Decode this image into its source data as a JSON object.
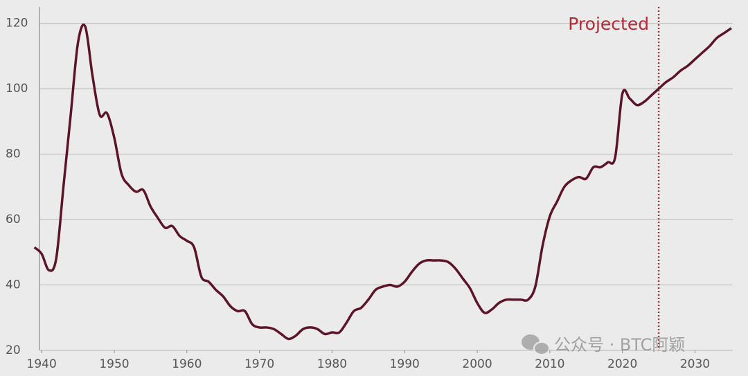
{
  "chart_data": {
    "type": "line",
    "x": [
      1939,
      1940,
      1941,
      1942,
      1943,
      1944,
      1945,
      1946,
      1947,
      1948,
      1949,
      1950,
      1951,
      1952,
      1953,
      1954,
      1955,
      1956,
      1957,
      1958,
      1959,
      1960,
      1961,
      1962,
      1963,
      1964,
      1965,
      1966,
      1967,
      1968,
      1969,
      1970,
      1971,
      1972,
      1973,
      1974,
      1975,
      1976,
      1977,
      1978,
      1979,
      1980,
      1981,
      1982,
      1983,
      1984,
      1985,
      1986,
      1987,
      1988,
      1989,
      1990,
      1991,
      1992,
      1993,
      1994,
      1995,
      1996,
      1997,
      1998,
      1999,
      2000,
      2001,
      2002,
      2003,
      2004,
      2005,
      2006,
      2007,
      2008,
      2009,
      2010,
      2011,
      2012,
      2013,
      2014,
      2015,
      2016,
      2017,
      2018,
      2019,
      2020,
      2021,
      2022,
      2023,
      2024,
      2025,
      2026,
      2027,
      2028,
      2029,
      2030,
      2031,
      2032,
      2033,
      2034,
      2035
    ],
    "values": [
      51.5,
      49.5,
      44.5,
      48,
      70,
      92,
      114,
      119,
      104,
      92,
      92.5,
      85,
      74,
      70.5,
      68.5,
      69,
      64,
      60.5,
      57.5,
      58,
      55,
      53.5,
      51.5,
      42.5,
      41,
      38.5,
      36.5,
      33.5,
      32,
      32,
      28,
      27,
      27,
      26.5,
      25,
      23.5,
      24.5,
      26.5,
      27,
      26.5,
      25,
      25.5,
      25.5,
      28.5,
      32,
      33,
      35.5,
      38.5,
      39.5,
      40,
      39.5,
      41,
      44,
      46.5,
      47.5,
      47.5,
      47.5,
      47,
      45,
      42,
      39,
      34.5,
      31.5,
      32.5,
      34.5,
      35.5,
      35.5,
      35.5,
      35.5,
      39.5,
      52,
      61,
      65.5,
      70,
      72,
      73,
      72.5,
      76,
      76,
      77.5,
      79,
      98.5,
      97,
      95,
      96,
      98,
      100,
      102,
      103.5,
      105.5,
      107,
      109,
      111,
      113,
      115.5,
      117,
      118.5
    ],
    "color": "#5c1528",
    "xlim": [
      1939.7,
      2035.2
    ],
    "xticks": [
      1940,
      1950,
      1960,
      1970,
      1980,
      1990,
      2000,
      2010,
      2020,
      2030
    ],
    "ylim": [
      20,
      125
    ],
    "yticks": [
      20,
      40,
      60,
      80,
      100,
      120
    ],
    "grid": true,
    "projection": {
      "x": 2025,
      "label": "Projected",
      "color": "#b52a35"
    },
    "watermark": "公众号 · BTC阿颖"
  }
}
